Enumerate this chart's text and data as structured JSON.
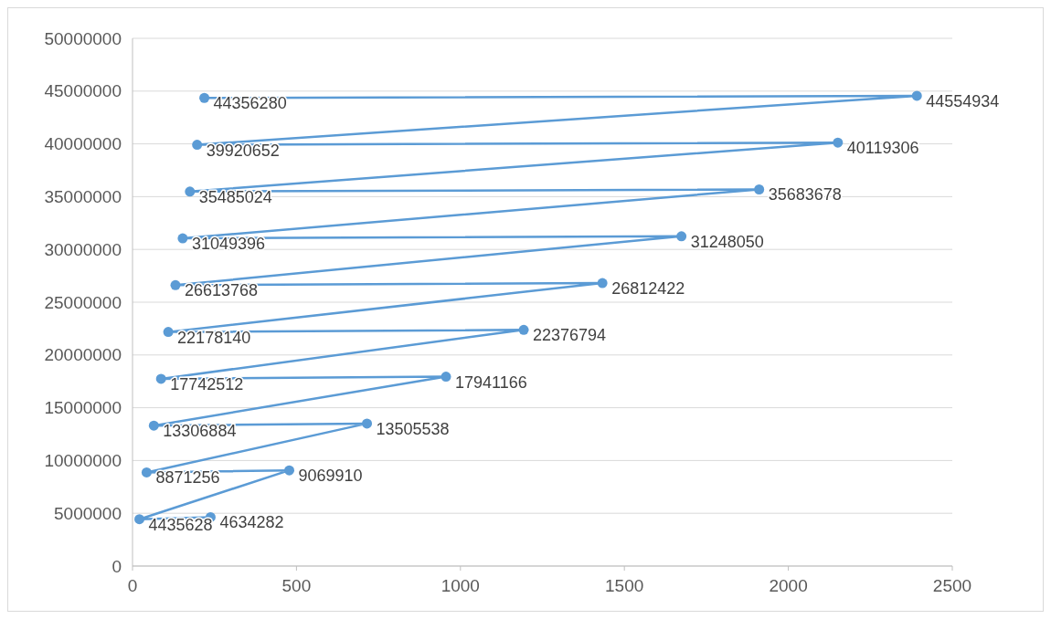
{
  "chart_data": {
    "type": "line",
    "x": [
      238,
      21,
      478,
      43,
      715,
      65,
      956,
      87,
      1193,
      109,
      1433,
      131,
      1674,
      153,
      1911,
      175,
      2151,
      197,
      2392,
      219
    ],
    "series": [
      {
        "color": "#5b9bd5",
        "values": [
          4634282,
          4435628,
          9069910,
          8871256,
          13505538,
          13306884,
          17941166,
          17742512,
          22376794,
          22178140,
          26812422,
          26613768,
          31248050,
          31049396,
          35683678,
          35485024,
          40119306,
          39920652,
          44554934,
          44356280
        ]
      }
    ],
    "xlim": [
      0,
      2500
    ],
    "xticks": [
      0,
      500,
      1000,
      1500,
      2000,
      2500
    ],
    "ylim": [
      0,
      50000000
    ],
    "yticks": [
      0,
      5000000,
      10000000,
      15000000,
      20000000,
      25000000,
      30000000,
      35000000,
      40000000,
      45000000,
      50000000
    ],
    "grid": "y",
    "marker": "circle",
    "line_style": "solid",
    "data_labels": true
  }
}
